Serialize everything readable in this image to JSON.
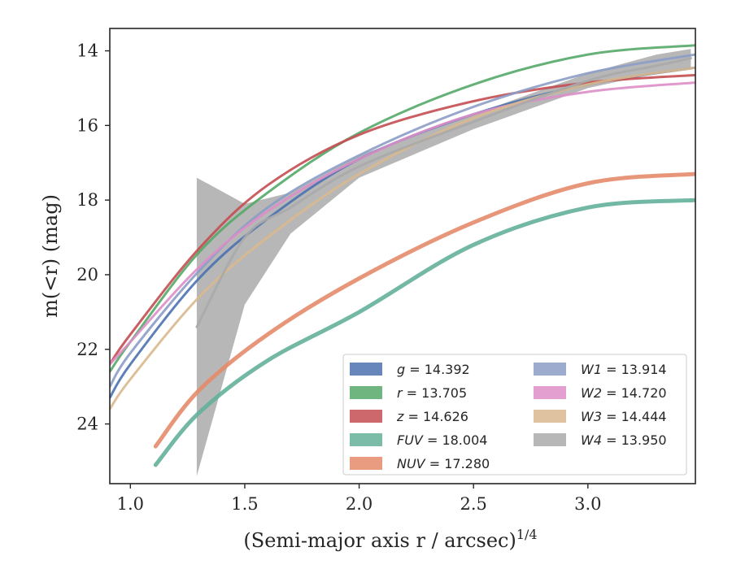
{
  "chart_data": {
    "type": "line",
    "xlabel": "(Semi-major axis r / arcsec)",
    "xlabel_sup": "1/4",
    "ylabel": "m(<r) (mag)",
    "xlim": [
      0.91,
      3.47
    ],
    "ylim": [
      25.6,
      13.4
    ],
    "y_inverted": true,
    "xticks": [
      "1.0",
      "1.5",
      "2.0",
      "2.5",
      "3.0"
    ],
    "yticks": [
      "14",
      "16",
      "18",
      "20",
      "22",
      "24"
    ],
    "grid": false,
    "legend_position": "lower-right",
    "series": [
      {
        "name": "g",
        "total": "14.392",
        "color": "#4c72b0",
        "x": [
          0.91,
          1.0,
          1.3,
          1.6,
          2.0,
          2.5,
          3.0,
          3.47
        ],
        "y": [
          23.3,
          22.4,
          20.1,
          18.5,
          16.9,
          15.7,
          14.9,
          14.45
        ]
      },
      {
        "name": "r",
        "total": "13.705",
        "color": "#55a868",
        "x": [
          0.91,
          1.0,
          1.3,
          1.6,
          2.0,
          2.5,
          3.0,
          3.47
        ],
        "y": [
          22.6,
          21.8,
          19.4,
          17.8,
          16.2,
          14.9,
          14.1,
          13.85
        ]
      },
      {
        "name": "z",
        "total": "14.626",
        "color": "#c44e52",
        "x": [
          0.91,
          1.0,
          1.3,
          1.6,
          2.0,
          2.5,
          3.0,
          3.47
        ],
        "y": [
          22.4,
          21.6,
          19.3,
          17.6,
          16.25,
          15.35,
          14.85,
          14.65
        ]
      },
      {
        "name": "FUV",
        "total": "18.004",
        "color": "#64b09a",
        "x": [
          1.11,
          1.3,
          1.6,
          2.0,
          2.5,
          3.0,
          3.47
        ],
        "y": [
          25.1,
          23.7,
          22.3,
          21.0,
          19.2,
          18.2,
          18.0
        ]
      },
      {
        "name": "NUV",
        "total": "17.280",
        "color": "#e58b6a",
        "x": [
          1.11,
          1.3,
          1.6,
          2.0,
          2.5,
          3.0,
          3.47
        ],
        "y": [
          24.6,
          23.1,
          21.6,
          20.1,
          18.6,
          17.55,
          17.3
        ]
      },
      {
        "name": "W1",
        "total": "13.914",
        "color": "#8c9dc6",
        "x": [
          0.91,
          1.0,
          1.3,
          1.6,
          2.0,
          2.5,
          3.0,
          3.47
        ],
        "y": [
          23.0,
          22.1,
          19.9,
          18.2,
          16.8,
          15.5,
          14.6,
          14.1
        ]
      },
      {
        "name": "W2",
        "total": "14.720",
        "color": "#dd8ec7",
        "x": [
          0.91,
          1.0,
          1.3,
          1.6,
          2.0,
          2.5,
          3.0,
          3.47
        ],
        "y": [
          22.4,
          21.8,
          19.8,
          18.3,
          16.9,
          15.7,
          15.1,
          14.85
        ]
      },
      {
        "name": "W3",
        "total": "14.444",
        "color": "#d9b98f",
        "x": [
          0.91,
          1.0,
          1.3,
          1.6,
          2.0,
          2.5,
          3.0,
          3.47
        ],
        "y": [
          23.6,
          22.8,
          20.6,
          19.0,
          17.3,
          15.8,
          14.9,
          14.45
        ]
      },
      {
        "name": "W4",
        "total": "13.950",
        "color": "#aaaaaa",
        "x": [
          1.29,
          1.5,
          1.7,
          2.0,
          2.5,
          3.0,
          3.3,
          3.45
        ],
        "y": [
          21.4,
          19.0,
          18.2,
          17.1,
          15.9,
          14.8,
          14.4,
          14.2
        ],
        "band_upper": [
          17.4,
          18.1,
          17.8,
          16.8,
          15.7,
          14.6,
          14.1,
          13.95
        ],
        "band_lower": [
          25.4,
          20.8,
          18.9,
          17.4,
          16.1,
          15.0,
          14.6,
          14.5
        ]
      }
    ]
  }
}
